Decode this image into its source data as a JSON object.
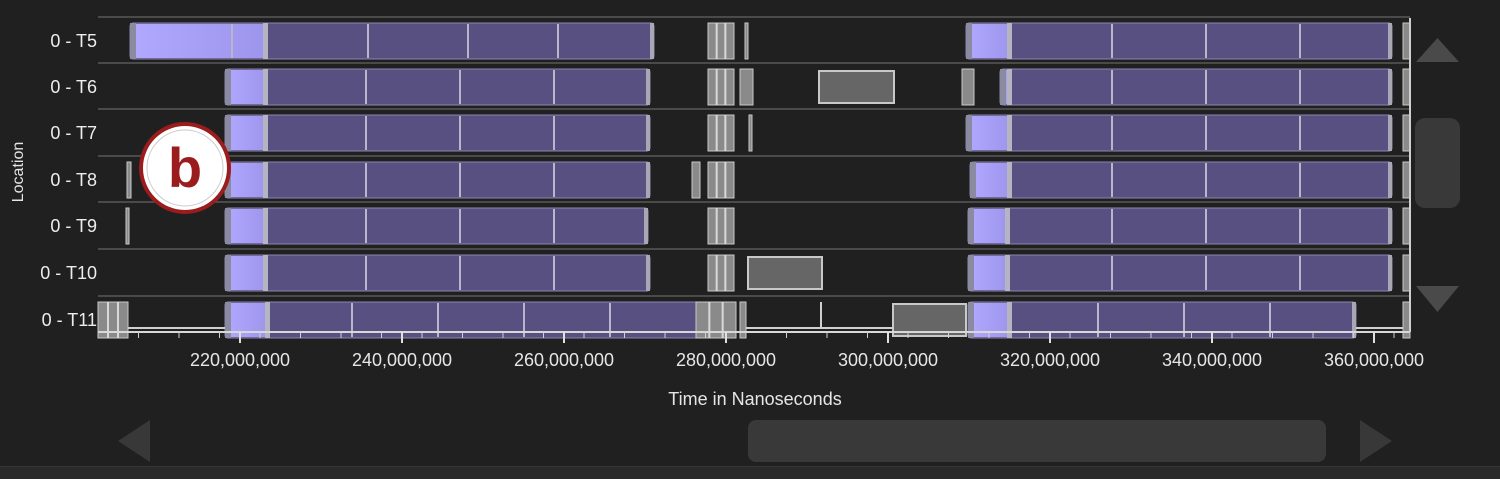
{
  "axis": {
    "ylabel": "Location",
    "xlabel": "Time in Nanoseconds",
    "ticks": [
      "220,000,000",
      "240,000,000",
      "260,000,000",
      "280,000,000",
      "300,000,000",
      "320,000,000",
      "340,000,000",
      "360,000,000"
    ]
  },
  "rows": [
    {
      "label": "0 - T5"
    },
    {
      "label": "0 - T6"
    },
    {
      "label": "0 - T7"
    },
    {
      "label": "0 - T8"
    },
    {
      "label": "0 - T9"
    },
    {
      "label": "0 - T10"
    },
    {
      "label": "0 - T11"
    }
  ],
  "marker": {
    "letter": "b"
  },
  "colors": {
    "background": "#202020",
    "bar_purple": "#585080",
    "bar_highlight": "#a79ef2",
    "bar_gray": "#666666",
    "marker_red": "#9b1c1c"
  },
  "controls": {
    "scroll_up_icon": "triangle-up-icon",
    "scroll_down_icon": "triangle-down-icon",
    "scroll_left_icon": "triangle-left-icon",
    "scroll_right_icon": "triangle-right-icon"
  }
}
